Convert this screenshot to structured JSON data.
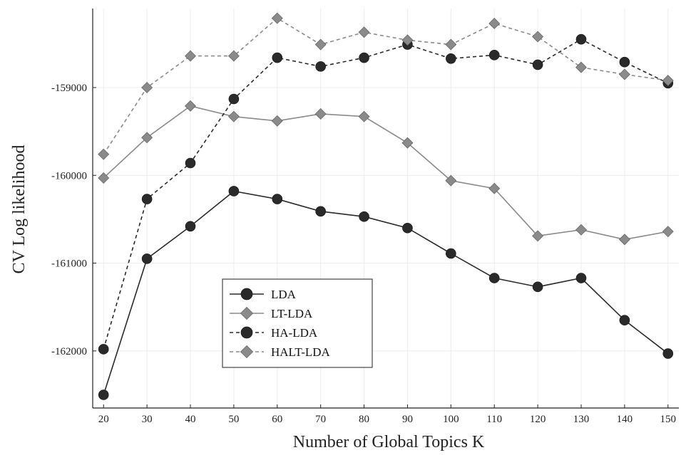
{
  "chart_data": {
    "type": "line",
    "title": "",
    "xlabel": "Number of Global Topics K",
    "ylabel": "CV Log likelihood",
    "x": [
      20,
      30,
      40,
      50,
      60,
      70,
      80,
      90,
      100,
      110,
      120,
      130,
      140,
      150
    ],
    "xticks": [
      "20",
      "30",
      "40",
      "50",
      "60",
      "70",
      "80",
      "90",
      "100",
      "110",
      "120",
      "130",
      "140",
      "150"
    ],
    "yticks": [
      {
        "value": -159000,
        "label": "-159000"
      },
      {
        "value": -160000,
        "label": "-160000"
      },
      {
        "value": -161000,
        "label": "-161000"
      },
      {
        "value": -162000,
        "label": "-162000"
      }
    ],
    "xlim": [
      17.5,
      152.5
    ],
    "ylim": [
      -162650,
      -158100
    ],
    "grid": true,
    "legend": {
      "position": "lower-left"
    },
    "series": [
      {
        "name": "LDA",
        "color": "#2a2a2a",
        "dash": "solid",
        "marker": "circle",
        "values": [
          -162500,
          -160950,
          -160580,
          -160180,
          -160270,
          -160410,
          -160470,
          -160600,
          -160890,
          -161170,
          -161270,
          -161170,
          -161650,
          -162030
        ]
      },
      {
        "name": "LT-LDA",
        "color": "#8a8a8a",
        "dash": "solid",
        "marker": "diamond",
        "values": [
          -160030,
          -159570,
          -159210,
          -159330,
          -159380,
          -159300,
          -159330,
          -159630,
          -160060,
          -160150,
          -160690,
          -160620,
          -160730,
          -160640
        ]
      },
      {
        "name": "HA-LDA",
        "color": "#2a2a2a",
        "dash": "dashed",
        "marker": "circle",
        "values": [
          -161980,
          -160270,
          -159860,
          -159130,
          -158660,
          -158760,
          -158660,
          -158510,
          -158670,
          -158630,
          -158740,
          -158450,
          -158710,
          -158950
        ]
      },
      {
        "name": "HALT-LDA",
        "color": "#8a8a8a",
        "dash": "dashed",
        "marker": "diamond",
        "values": [
          -159760,
          -159000,
          -158640,
          -158640,
          -158210,
          -158510,
          -158370,
          -158460,
          -158510,
          -158270,
          -158420,
          -158770,
          -158850,
          -158920
        ]
      }
    ]
  }
}
